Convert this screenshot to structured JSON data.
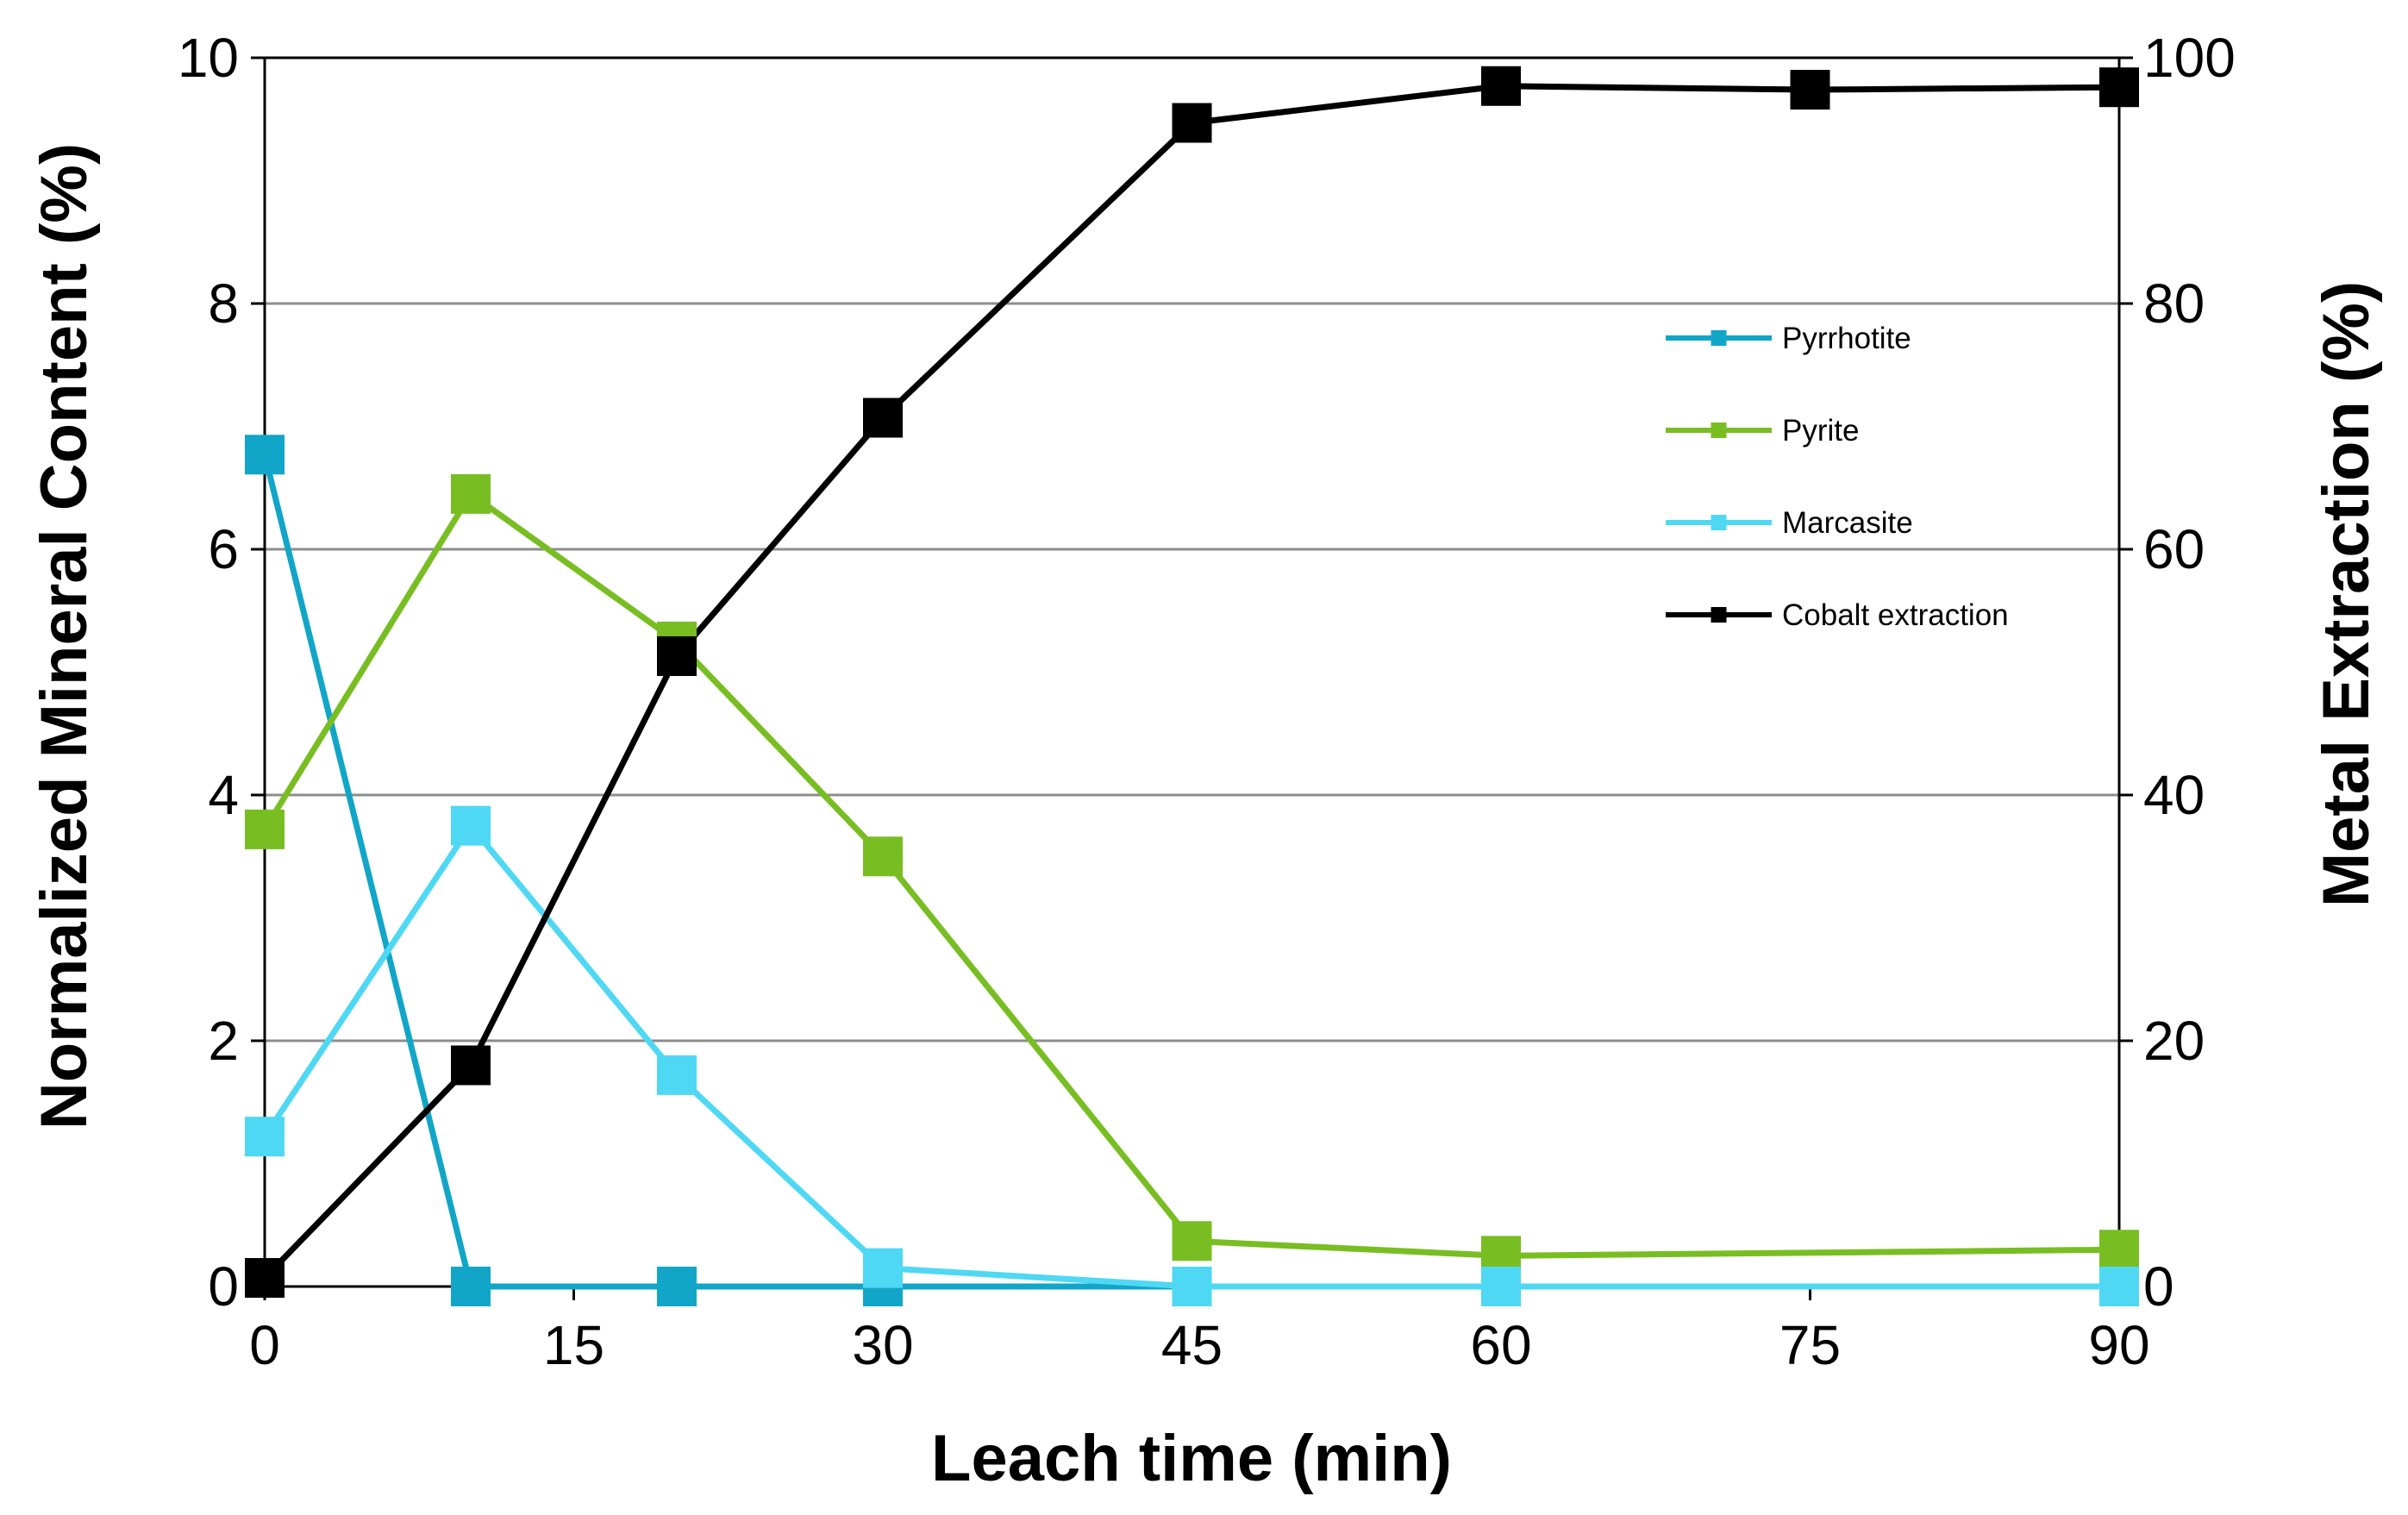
{
  "chart_data": {
    "type": "line",
    "title": "",
    "xlabel": "Leach time (min)",
    "ylabel": "Normalized Mineral Content (%)",
    "y2label": "Metal Extraction (%)",
    "xlim": [
      0,
      90
    ],
    "ylim": [
      0,
      10
    ],
    "y2lim": [
      0,
      100
    ],
    "xticks": [
      "0",
      "15",
      "30",
      "45",
      "60",
      "75",
      "90"
    ],
    "xtick_values": [
      0,
      15,
      30,
      45,
      60,
      75,
      90
    ],
    "yticks": [
      "0",
      "2",
      "4",
      "6",
      "8",
      "10"
    ],
    "ytick_values": [
      0,
      2,
      4,
      6,
      8,
      10
    ],
    "y2ticks": [
      "0",
      "20",
      "40",
      "60",
      "80",
      "100"
    ],
    "y2tick_values": [
      0,
      20,
      40,
      60,
      80,
      100
    ],
    "grid": true,
    "legend_position": "right",
    "series": [
      {
        "name": "Pyrrhotite",
        "axis": "left",
        "color": "#11A6C8",
        "x": [
          0,
          10,
          20,
          30,
          45,
          60,
          75,
          90
        ],
        "y": [
          6.77,
          0.0,
          0.0,
          0.0,
          0.0,
          0.0,
          0.0,
          0.0
        ],
        "marker_x": [
          0,
          10,
          20,
          30
        ]
      },
      {
        "name": "Pyrite",
        "axis": "left",
        "color": "#78BE22",
        "x": [
          0,
          10,
          20,
          30,
          45,
          60,
          90
        ],
        "y": [
          3.72,
          6.45,
          5.25,
          3.5,
          0.37,
          0.25,
          0.3
        ]
      },
      {
        "name": "Marcasite",
        "axis": "left",
        "color": "#4FD8F4",
        "x": [
          0,
          10,
          20,
          30,
          45,
          60,
          90
        ],
        "y": [
          1.22,
          3.75,
          1.72,
          0.15,
          0.0,
          0.0,
          0.0
        ]
      },
      {
        "name": "Cobalt extraction",
        "axis": "right",
        "color": "#000000",
        "x": [
          0,
          10,
          20,
          30,
          45,
          60,
          75,
          90
        ],
        "y": [
          0.7,
          18.0,
          51.3,
          70.7,
          94.7,
          97.7,
          97.4,
          97.6
        ]
      }
    ]
  }
}
